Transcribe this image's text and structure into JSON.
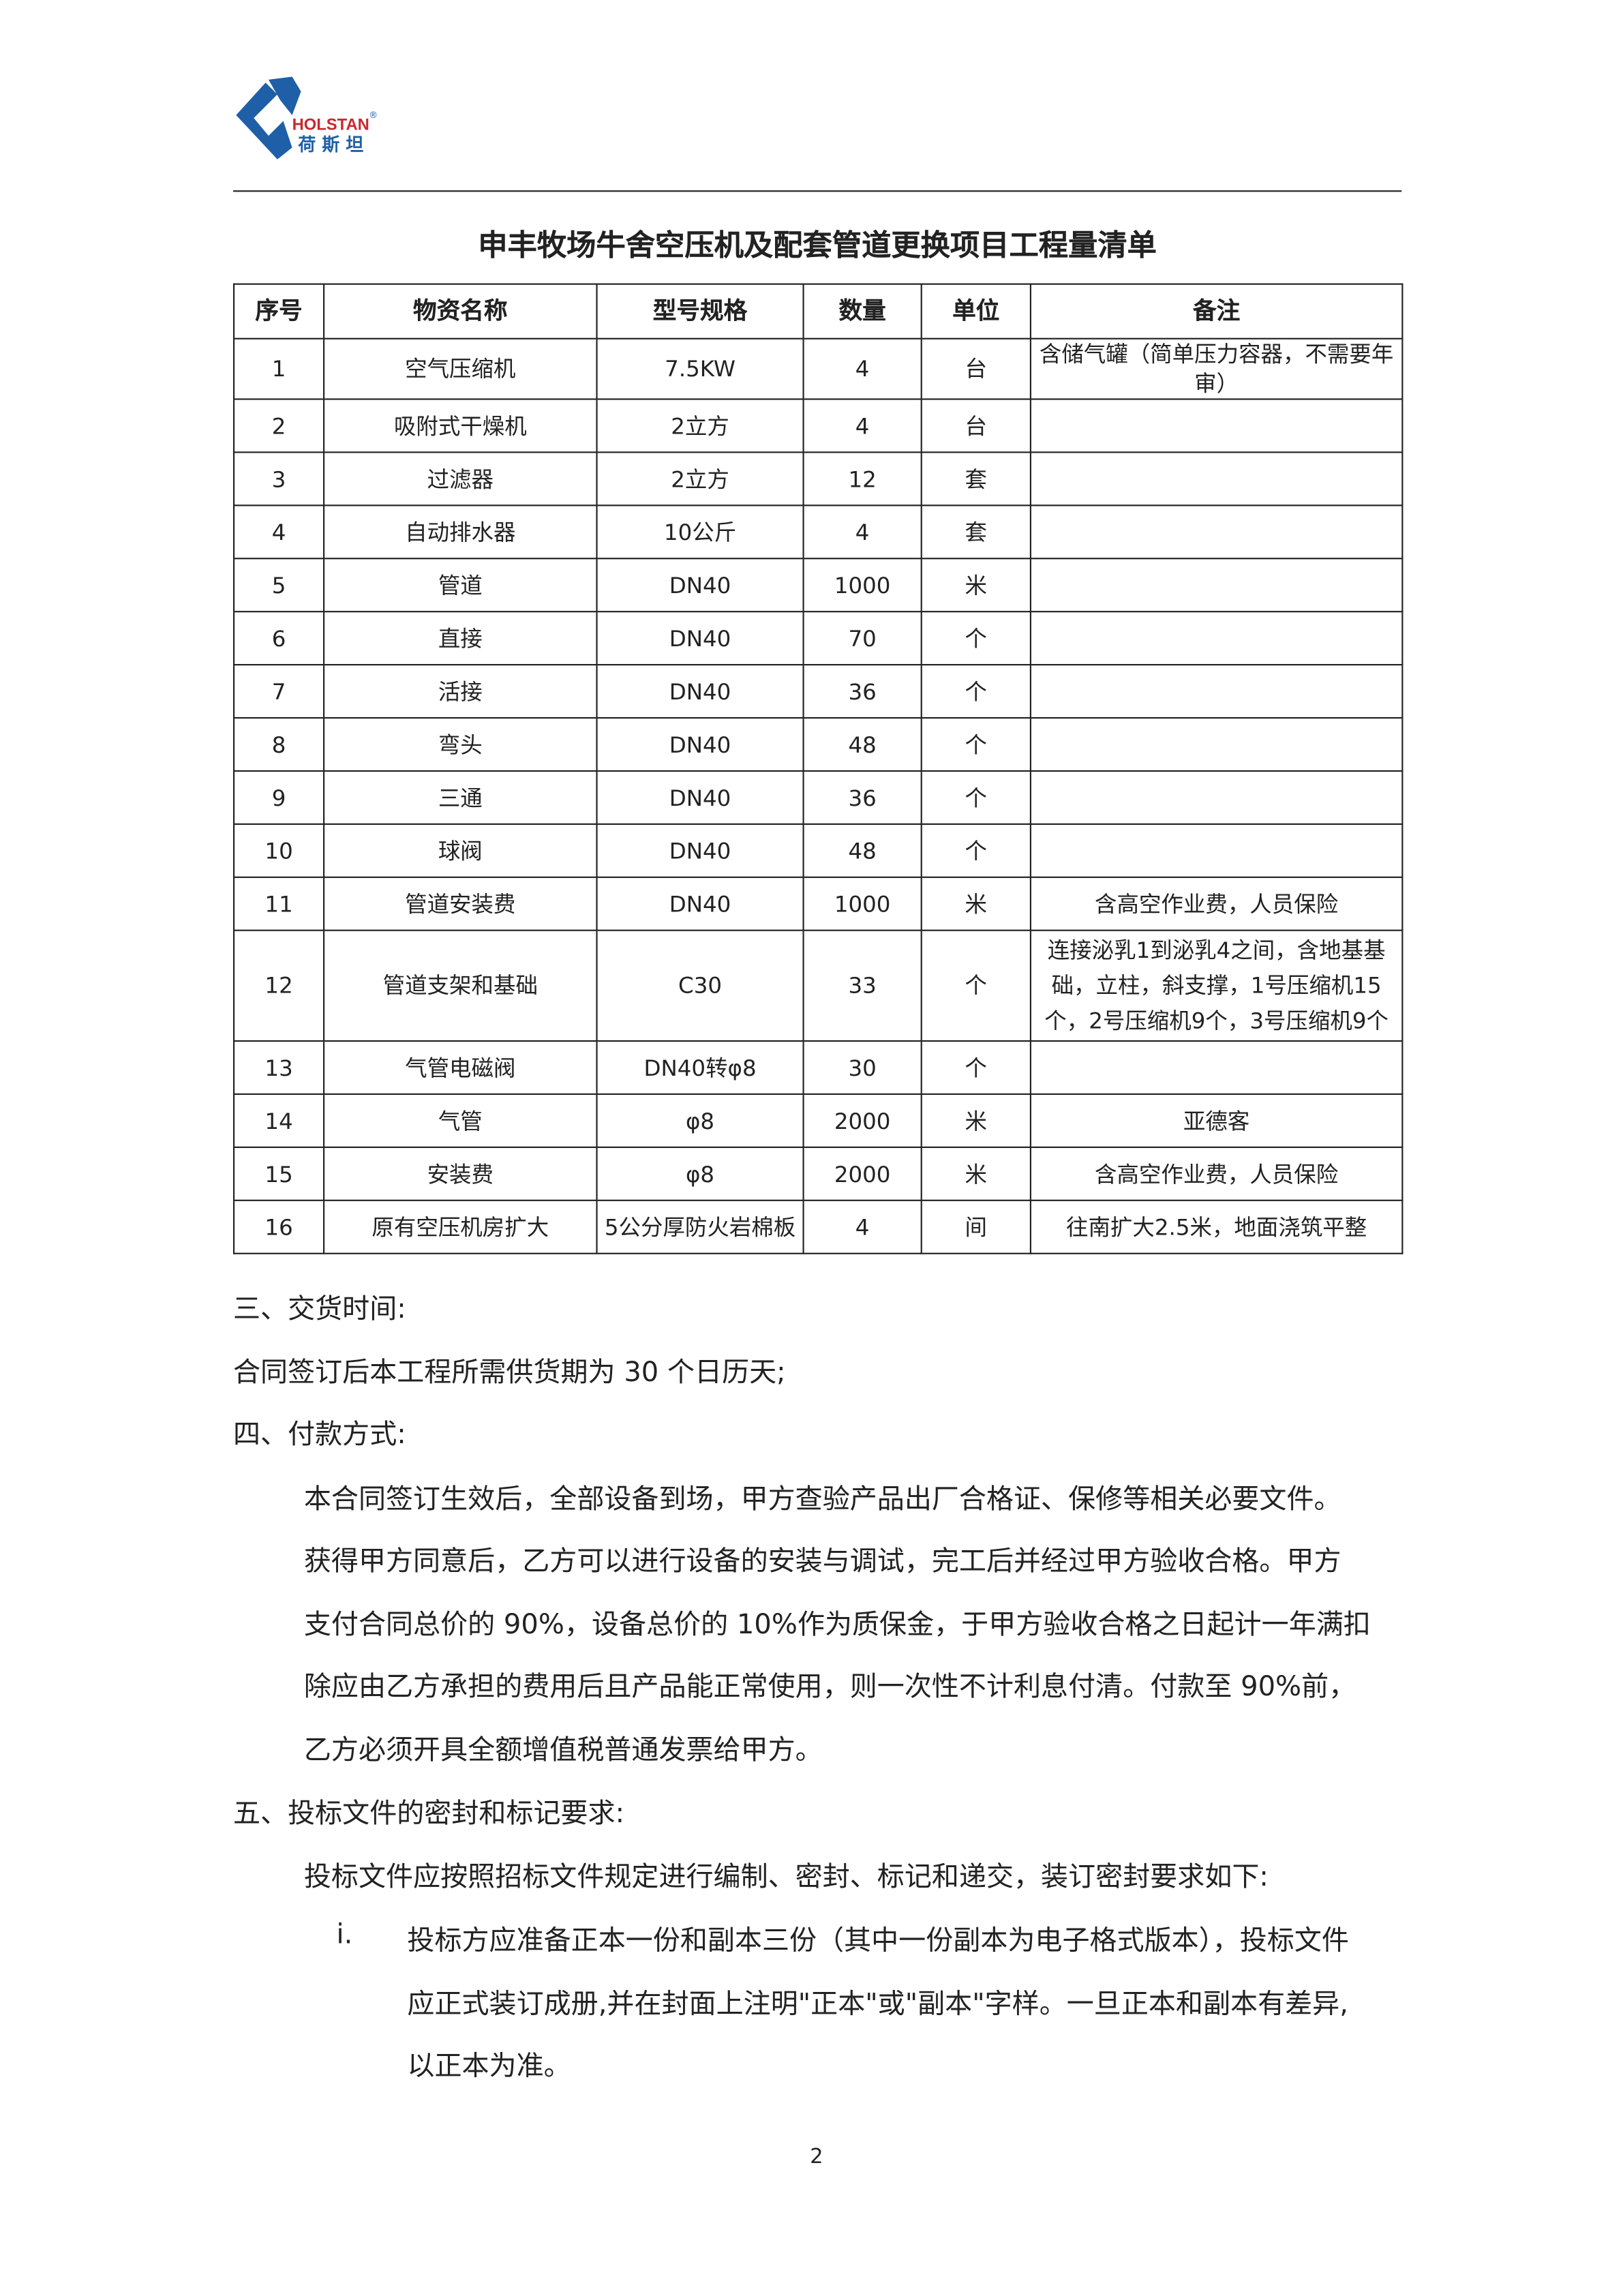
{
  "logo": {
    "brand_en": "HOLSTAN",
    "brand_cn": "荷斯坦",
    "registered": "®",
    "color": "#1f5fa8"
  },
  "title": "申丰牧场牛舍空压机及配套管道更换项目工程量清单",
  "table": {
    "headers": [
      "序号",
      "物资名称",
      "型号规格",
      "数量",
      "单位",
      "备注"
    ],
    "rows": [
      [
        "1",
        "空气压缩机",
        "7.5KW",
        "4",
        "台",
        "含储气罐（简单压力容器，不需要年审）"
      ],
      [
        "2",
        "吸附式干燥机",
        "2立方",
        "4",
        "台",
        ""
      ],
      [
        "3",
        "过滤器",
        "2立方",
        "12",
        "套",
        ""
      ],
      [
        "4",
        "自动排水器",
        "10公斤",
        "4",
        "套",
        ""
      ],
      [
        "5",
        "管道",
        "DN40",
        "1000",
        "米",
        ""
      ],
      [
        "6",
        "直接",
        "DN40",
        "70",
        "个",
        ""
      ],
      [
        "7",
        "活接",
        "DN40",
        "36",
        "个",
        ""
      ],
      [
        "8",
        "弯头",
        "DN40",
        "48",
        "个",
        ""
      ],
      [
        "9",
        "三通",
        "DN40",
        "36",
        "个",
        ""
      ],
      [
        "10",
        "球阀",
        "DN40",
        "48",
        "个",
        ""
      ],
      [
        "11",
        "管道安装费",
        "DN40",
        "1000",
        "米",
        "含高空作业费，人员保险"
      ],
      [
        "12",
        "管道支架和基础",
        "C30",
        "33",
        "个",
        "连接泌乳1到泌乳4之间，含地基基础，立柱，斜支撑，1号压缩机15个，2号压缩机9个，3号压缩机9个"
      ],
      [
        "13",
        "气管电磁阀",
        "DN40转φ8",
        "30",
        "个",
        ""
      ],
      [
        "14",
        "气管",
        "φ8",
        "2000",
        "米",
        "亚德客"
      ],
      [
        "15",
        "安装费",
        "φ8",
        "2000",
        "米",
        "含高空作业费，人员保险"
      ],
      [
        "16",
        "原有空压机房扩大",
        "5公分厚防火岩棉板",
        "4",
        "间",
        "往南扩大2.5米，地面浇筑平整"
      ]
    ]
  },
  "text": {
    "s3_heading": "三、交货时间:",
    "s3_body": "合同签订后本工程所需供货期为 30 个日历天;",
    "s4_heading": "四、付款方式:",
    "s4_lines": [
      "本合同签订生效后，全部设备到场，甲方查验产品出厂合格证、保修等相关必要文件。",
      "获得甲方同意后，乙方可以进行设备的安装与调试，完工后并经过甲方验收合格。甲方",
      "支付合同总价的 90%，设备总价的 10%作为质保金，于甲方验收合格之日起计一年满扣",
      "除应由乙方承担的费用后且产品能正常使用，则一次性不计利息付清。付款至 90%前，",
      "乙方必须开具全额增值税普通发票给甲方。"
    ],
    "s5_heading": "五、投标文件的密封和标记要求:",
    "s5_intro": "投标文件应按照招标文件规定进行编制、密封、标记和递交，装订密封要求如下:",
    "item_marker": "i.",
    "item_lines": [
      "投标方应准备正本一份和副本三份（其中一份副本为电子格式版本），投标文件",
      "应正式装订成册,并在封面上注明\"正本\"或\"副本\"字样。一旦正本和副本有差异,",
      "以正本为准。"
    ]
  },
  "page_number": "2"
}
